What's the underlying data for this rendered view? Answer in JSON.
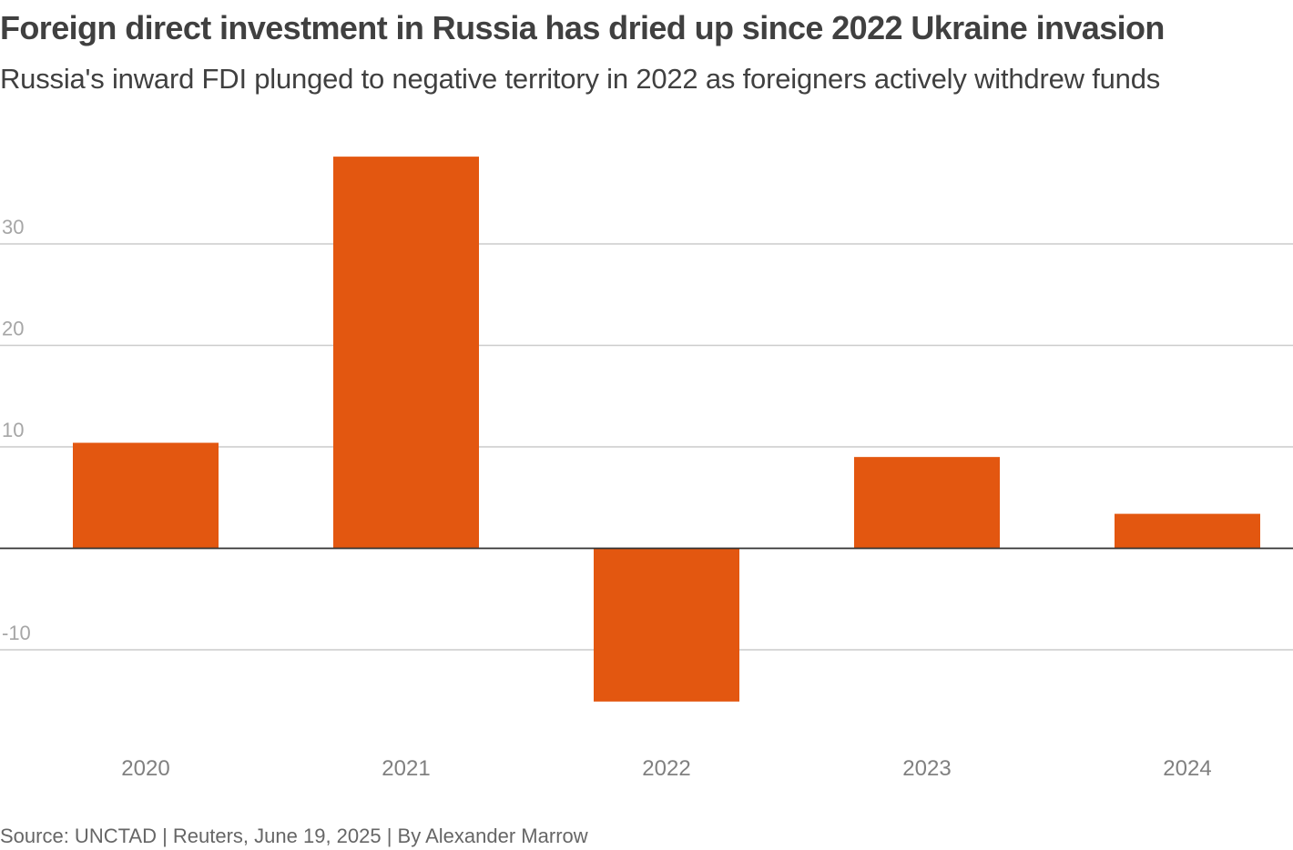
{
  "title": "Foreign direct investment in Russia has dried up since 2022 Ukraine invasion",
  "subtitle": "Russia's inward FDI plunged to negative territory in 2022 as foreigners actively withdrew funds",
  "footer": "Source: UNCTAD | Reuters, June 19, 2025 | By Alexander Marrow",
  "colors": {
    "bar": "#e35710",
    "grid": "#cccccc",
    "zero_line": "#333333"
  },
  "chart_data": {
    "type": "bar",
    "categories": [
      "2020",
      "2021",
      "2022",
      "2023",
      "2024"
    ],
    "values": [
      10.4,
      38.6,
      -15.1,
      9.0,
      3.4
    ],
    "yticks": [
      -10,
      10,
      20,
      30
    ],
    "ylim": [
      -17,
      39
    ],
    "grid": true,
    "xlabel": "",
    "ylabel": ""
  }
}
